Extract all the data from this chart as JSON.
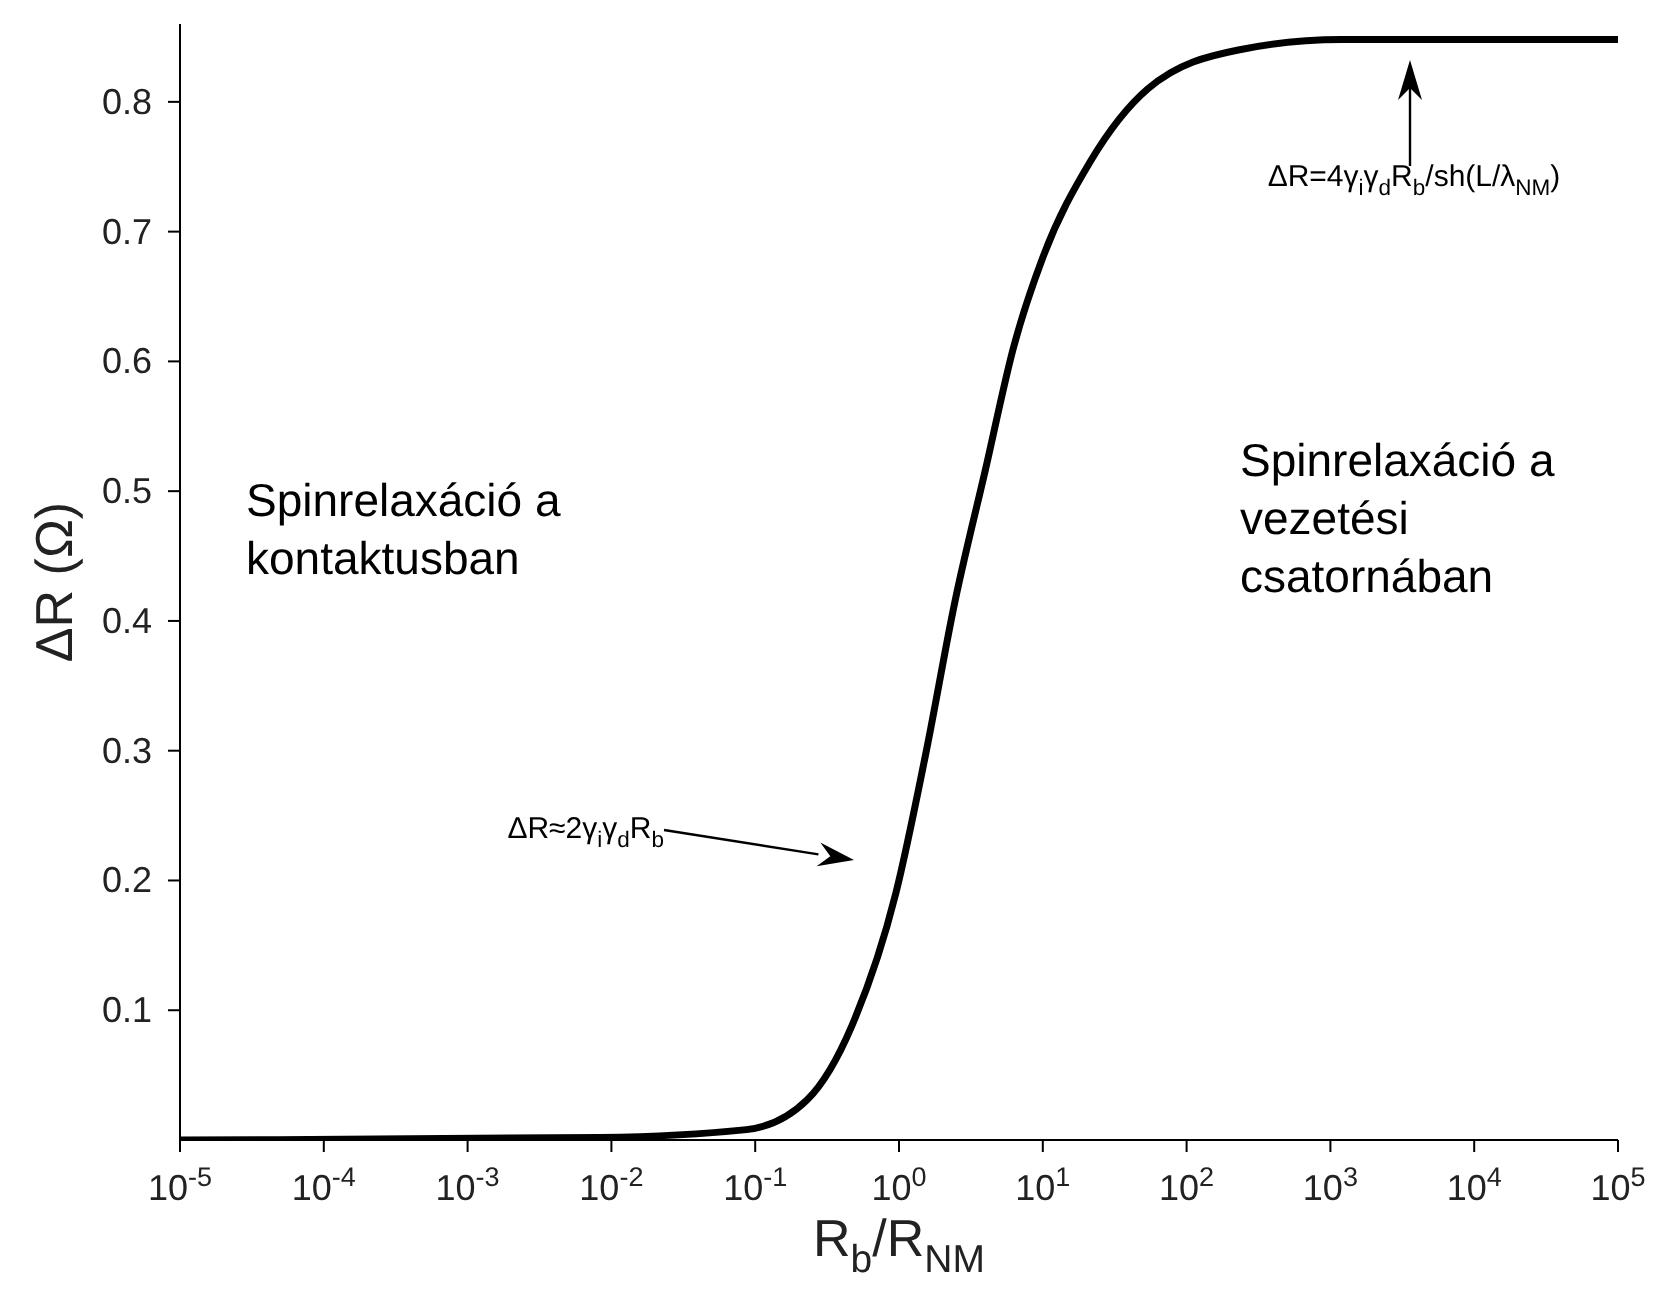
{
  "chart_data": {
    "type": "line",
    "xlabel": "R$_{b}$/R$_{NM}$",
    "ylabel": "ΔR (Ω)",
    "log": "x",
    "x": [
      1e-05,
      0.0083,
      0.087,
      0.23,
      0.47,
      0.95,
      1.55,
      2.45,
      3.98,
      6.3,
      10,
      21.4,
      53.7,
      229,
      1200,
      100000
    ],
    "series": [
      {
        "color": "#000000",
        "values": [
          0,
          0.002,
          0.008,
          0.031,
          0.088,
          0.19,
          0.3,
          0.415,
          0.516,
          0.612,
          0.68,
          0.754,
          0.81,
          0.84,
          0.848,
          0.848
        ]
      }
    ],
    "xlim": [
      1e-05,
      100000
    ],
    "xticks": [
      {
        "value": 1e-05,
        "label": "10$^{-5}$"
      },
      {
        "value": 0.0001,
        "label": "10$^{-4}$"
      },
      {
        "value": 0.001,
        "label": "10$^{-3}$"
      },
      {
        "value": 0.01,
        "label": "10$^{-2}$"
      },
      {
        "value": 0.1,
        "label": "10$^{-1}$"
      },
      {
        "value": 1,
        "label": "10$^{0}$"
      },
      {
        "value": 10,
        "label": "10$^{1}$"
      },
      {
        "value": 100,
        "label": "10$^{2}$"
      },
      {
        "value": 1000,
        "label": "10$^{3}$"
      },
      {
        "value": 10000,
        "label": "10$^{4}$"
      },
      {
        "value": 100000,
        "label": "10$^{5}$"
      }
    ],
    "ylim": [
      0,
      0.86
    ],
    "yticks": [
      0.1,
      0.2,
      0.3,
      0.4,
      0.5,
      0.6,
      0.7,
      0.8
    ],
    "grid": false,
    "marker": "none",
    "line_style": "solid",
    "annotations": [
      "Spinrelaxáció a\nkontaktusban",
      "Spinrelaxáció a\nvezetési\ncsatornában",
      "ΔR≈2γ$_{i}$γ$_{d}$R$_{b}$",
      "ΔR=4γ$_{i}$γ$_{d}$R$_{b}$/sh(L/λ$_{NM}$)"
    ]
  }
}
